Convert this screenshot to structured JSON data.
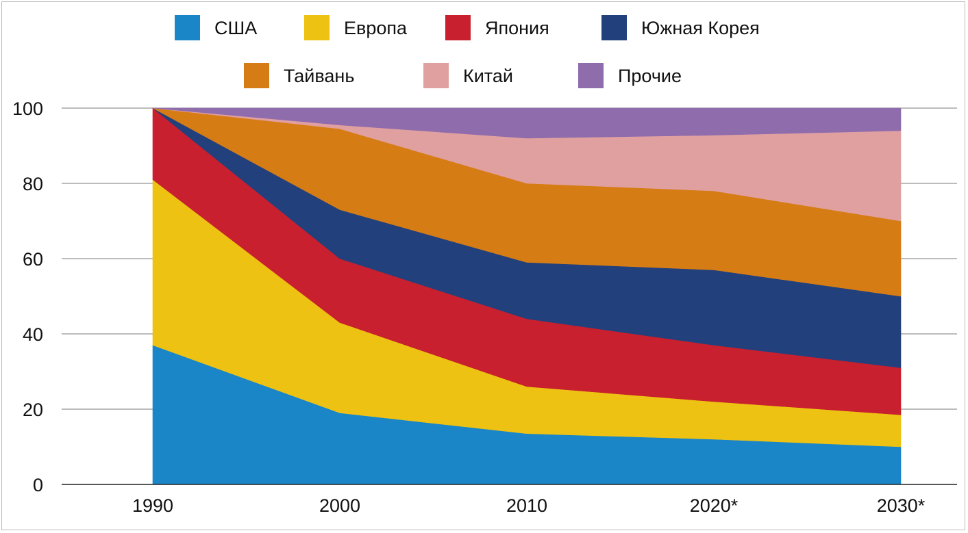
{
  "chart_data": {
    "type": "area",
    "stacked": true,
    "categories": [
      "1990",
      "2000",
      "2010",
      "2020*",
      "2030*"
    ],
    "series": [
      {
        "name": "США",
        "color": "#1a85c7",
        "values": [
          37,
          19,
          13.5,
          12,
          10
        ]
      },
      {
        "name": "Европа",
        "color": "#edc213",
        "values": [
          44,
          24,
          12.5,
          10,
          8.5
        ]
      },
      {
        "name": "Япония",
        "color": "#c8202e",
        "values": [
          19,
          17,
          18,
          15,
          12.5
        ]
      },
      {
        "name": "Южная Корея",
        "color": "#22407c",
        "values": [
          0,
          13,
          15,
          20,
          19
        ]
      },
      {
        "name": "Тайвань",
        "color": "#d67c15",
        "values": [
          0,
          21.5,
          21,
          21,
          20
        ]
      },
      {
        "name": "Китай",
        "color": "#e0a0a0",
        "values": [
          0,
          1,
          12,
          14.8,
          24
        ]
      },
      {
        "name": "Прочие",
        "color": "#8f6cac",
        "values": [
          0,
          4.5,
          8,
          7.2,
          6
        ]
      }
    ],
    "y_ticks": [
      "0",
      "20",
      "40",
      "60",
      "80",
      "100"
    ],
    "ylim": [
      0,
      100
    ],
    "grid": true,
    "legend_position": "top"
  }
}
